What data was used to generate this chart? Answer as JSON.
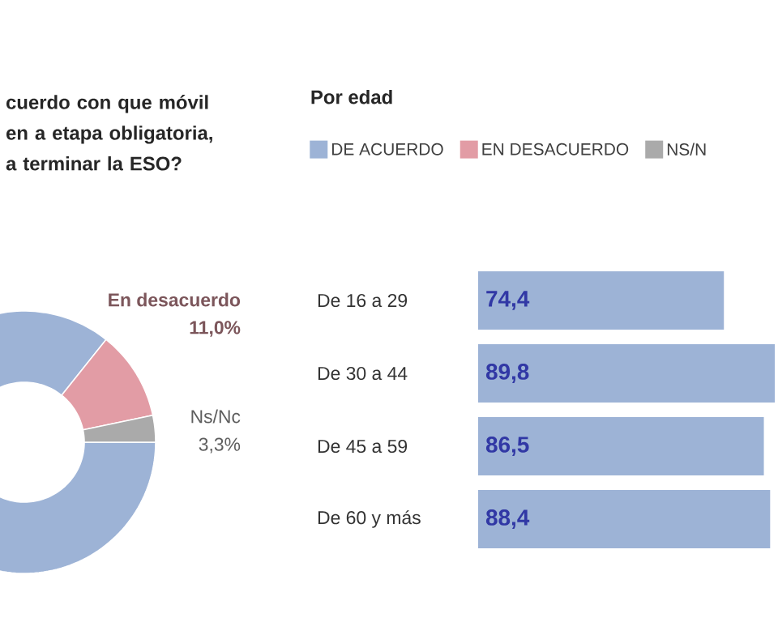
{
  "chart_data": [
    {
      "type": "donut",
      "title": "cuerdo con que móvil en a etapa obligatoria, a terminar la ESO?",
      "categories": [
        null,
        "En desacuerdo",
        "Ns/Nc"
      ],
      "values": [
        85.7,
        11.0,
        3.3
      ],
      "colors": [
        "#9db3d6",
        "#e29ca5",
        "#aaaaaa"
      ],
      "value_labels": [
        null,
        "11,0%",
        "3,3%"
      ]
    },
    {
      "type": "bar",
      "orientation": "horizontal",
      "title": "Por edad",
      "categories": [
        "De 16 a 29",
        "De 30 a 44",
        "De 45 a 59",
        "De 60 y más"
      ],
      "tick_labels": "y",
      "legend": "top",
      "series": [
        {
          "name": "DE ACUERDO",
          "color": "#9db3d6",
          "values": [
            74.4,
            89.8,
            86.5,
            88.4
          ],
          "value_labels": [
            "74,4",
            "89,8",
            "86,5",
            "88,4"
          ]
        },
        {
          "name": "EN DESACUERDO",
          "color": "#e29ca5",
          "values": [
            null,
            null,
            null,
            null
          ]
        },
        {
          "name": "NS/N",
          "color": "#aaaaaa",
          "values": [
            null,
            null,
            null,
            null
          ]
        }
      ]
    }
  ]
}
